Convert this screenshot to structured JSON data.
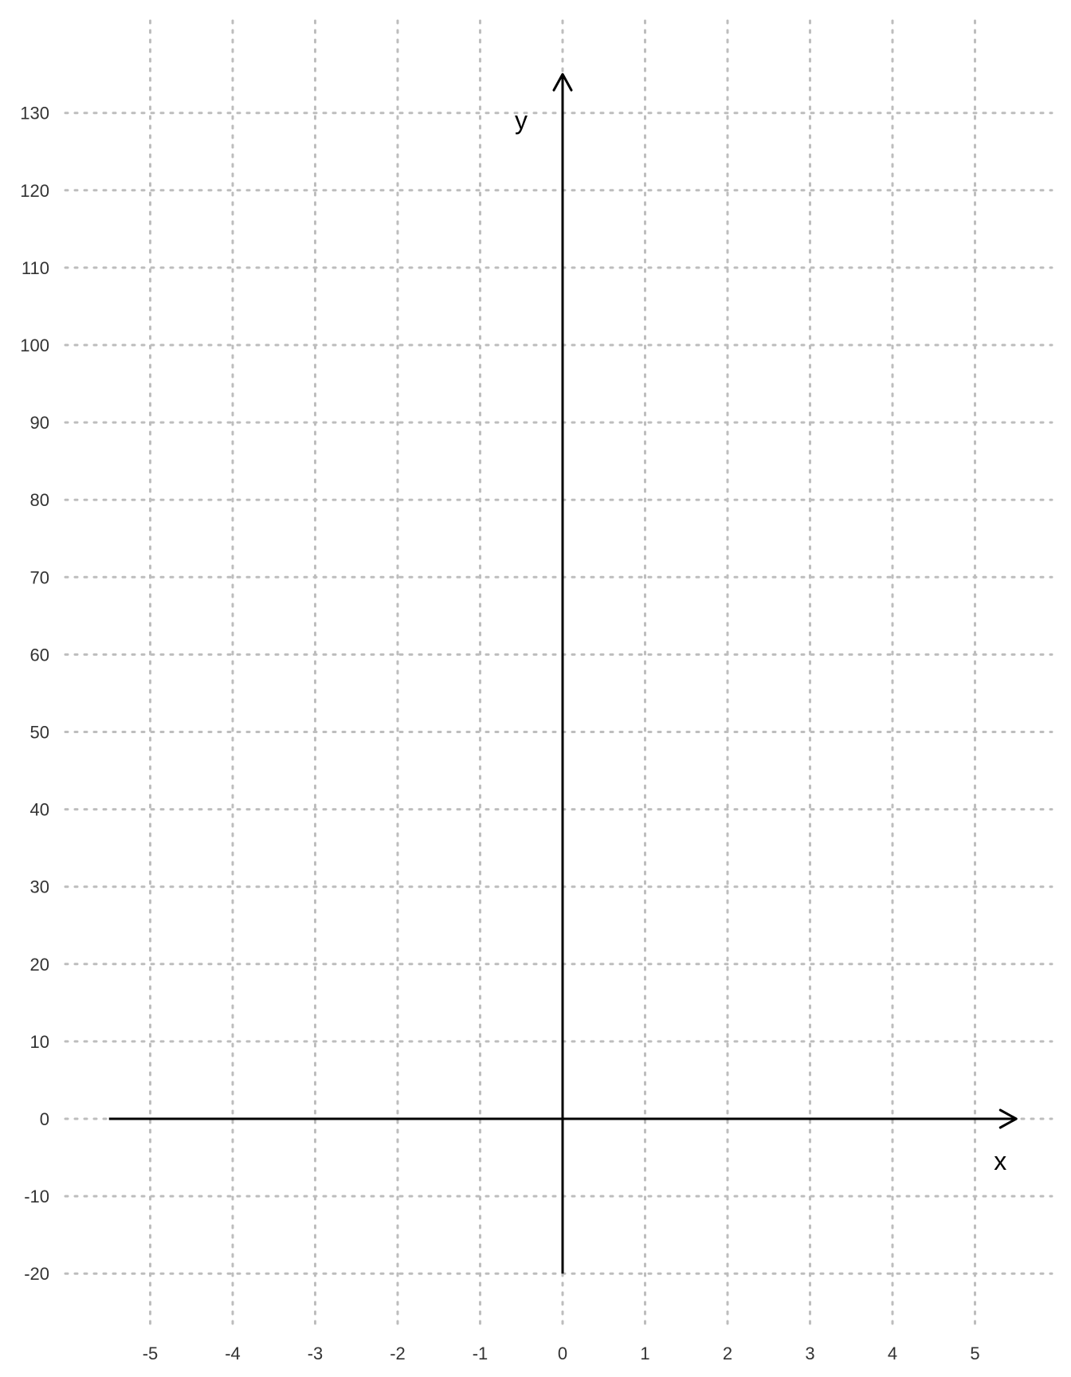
{
  "chart_data": {
    "type": "line",
    "title": "",
    "xlabel": "x",
    "ylabel": "y",
    "xlim": [
      -5.5,
      5.5
    ],
    "ylim": [
      -20,
      135
    ],
    "x_ticks": [
      -5,
      -4,
      -3,
      -2,
      -1,
      0,
      1,
      2,
      3,
      4,
      5
    ],
    "y_ticks": [
      -20,
      -10,
      0,
      10,
      20,
      30,
      40,
      50,
      60,
      70,
      80,
      90,
      100,
      110,
      120,
      130
    ],
    "grid": true,
    "series": []
  }
}
